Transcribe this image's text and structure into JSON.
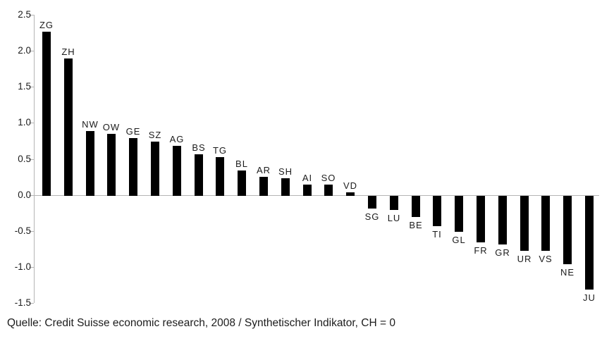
{
  "caption": "Quelle: Credit Suisse economic research, 2008 / Synthetischer Indikator, CH = 0",
  "chart_data": {
    "type": "bar",
    "title": "",
    "xlabel": "",
    "ylabel": "",
    "categories": [
      "ZG",
      "ZH",
      "NW",
      "OW",
      "GE",
      "SZ",
      "AG",
      "BS",
      "TG",
      "BL",
      "AR",
      "SH",
      "AI",
      "SO",
      "VD",
      "SG",
      "LU",
      "BE",
      "TI",
      "GL",
      "FR",
      "GR",
      "UR",
      "VS",
      "NE",
      "JU"
    ],
    "values": [
      2.27,
      1.89,
      0.89,
      0.85,
      0.79,
      0.74,
      0.68,
      0.56,
      0.52,
      0.34,
      0.25,
      0.23,
      0.14,
      0.14,
      0.04,
      -0.18,
      -0.2,
      -0.29,
      -0.42,
      -0.5,
      -0.65,
      -0.67,
      -0.76,
      -0.76,
      -0.95,
      -1.3
    ],
    "ylim": [
      -1.5,
      2.5
    ],
    "ytick_labels": [
      "2.5",
      "2.0",
      "1.5",
      "1.0",
      "0.5",
      "0.0",
      "-0.5",
      "-1.0",
      "-1.5"
    ],
    "ytick_values": [
      2.5,
      2.0,
      1.5,
      1.0,
      0.5,
      0.0,
      -0.5,
      -1.0,
      -1.5
    ],
    "grid": false,
    "legend": "none",
    "bar_color": "#000000",
    "axis_color": "#b5b5b5",
    "text_color": "#1c1c1c"
  }
}
